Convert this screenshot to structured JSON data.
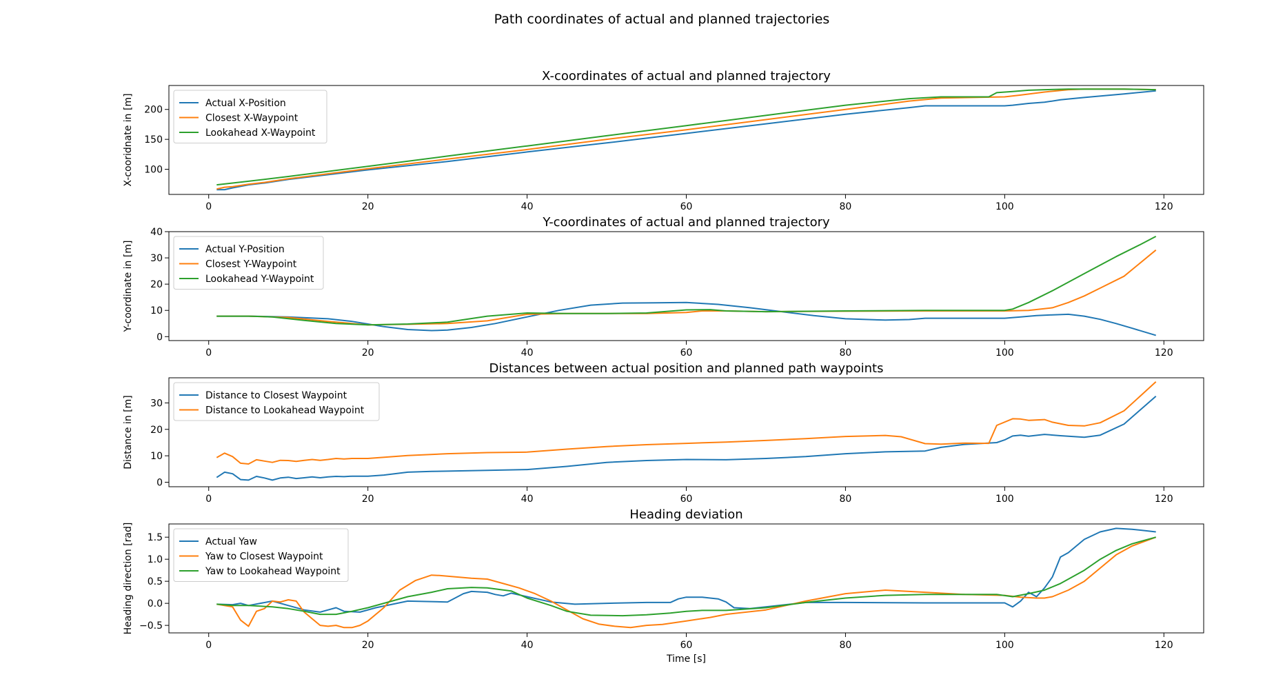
{
  "suptitle": "Path coordinates of actual and planned trajectories",
  "chart_data": [
    {
      "type": "line",
      "title": "X-coordinates of actual and planned trajectory",
      "xlabel": "",
      "ylabel": "X-cooridnate in [m]",
      "xlim": [
        -5,
        125
      ],
      "ylim": [
        58,
        240
      ],
      "xticks": [
        0,
        20,
        40,
        60,
        80,
        100,
        120
      ],
      "yticks": [
        100,
        150,
        200
      ],
      "legend_loc": "upper left",
      "series": [
        {
          "name": "Actual X-Position",
          "color": "#1f77b4",
          "x": [
            1,
            2,
            3,
            5,
            7,
            10,
            20,
            30,
            40,
            50,
            60,
            70,
            80,
            88,
            90,
            95,
            100,
            101,
            103,
            105,
            107,
            110,
            115,
            119
          ],
          "y": [
            66,
            66,
            69,
            74,
            77,
            83,
            99,
            113,
            129,
            144,
            160,
            176,
            192,
            203,
            206,
            206,
            206,
            207,
            210,
            212,
            216,
            220,
            226,
            231
          ]
        },
        {
          "name": "Closest X-Waypoint",
          "color": "#ff7f0e",
          "x": [
            1,
            2,
            3,
            5,
            7,
            10,
            20,
            30,
            40,
            50,
            60,
            70,
            80,
            88,
            92,
            100,
            102,
            105,
            108,
            110,
            115,
            119
          ],
          "y": [
            67,
            70,
            71,
            75,
            78,
            84,
            101,
            117,
            133,
            150,
            166,
            183,
            200,
            214,
            219,
            221,
            224,
            229,
            233,
            234,
            234,
            233
          ]
        },
        {
          "name": "Lookahead X-Waypoint",
          "color": "#2ca02c",
          "x": [
            1,
            5,
            10,
            20,
            30,
            40,
            50,
            60,
            70,
            80,
            88,
            92,
            98,
            99,
            101,
            103,
            105,
            108,
            110,
            115,
            119
          ],
          "y": [
            74,
            80,
            88,
            105,
            122,
            139,
            156,
            173,
            190,
            207,
            218,
            221,
            221,
            228,
            230,
            232,
            233,
            234,
            234,
            234,
            233
          ]
        }
      ]
    },
    {
      "type": "line",
      "title": "Y-coordinates of actual and planned trajectory",
      "xlabel": "",
      "ylabel": "Y-coordinate in [m]",
      "xlim": [
        -5,
        125
      ],
      "ylim": [
        -1.5,
        40
      ],
      "xticks": [
        0,
        20,
        40,
        60,
        80,
        100,
        120
      ],
      "yticks": [
        0,
        10,
        20,
        30,
        40
      ],
      "legend_loc": "upper left",
      "series": [
        {
          "name": "Actual Y-Position",
          "color": "#1f77b4",
          "x": [
            1,
            5,
            10,
            15,
            18,
            20,
            22,
            25,
            28,
            30,
            33,
            36,
            40,
            44,
            48,
            52,
            56,
            60,
            64,
            68,
            72,
            76,
            80,
            85,
            88,
            90,
            95,
            100,
            102,
            104,
            106,
            108,
            110,
            112,
            114,
            116,
            119
          ],
          "y": [
            7.8,
            7.8,
            7.5,
            6.8,
            5.8,
            4.8,
            3.8,
            2.7,
            2.3,
            2.5,
            3.5,
            5,
            7.5,
            10,
            12,
            12.8,
            12.9,
            13,
            12.3,
            11,
            9.5,
            8,
            6.8,
            6.3,
            6.5,
            7,
            7,
            7,
            7.5,
            8,
            8.3,
            8.5,
            7.8,
            6.6,
            5,
            3.2,
            0.5
          ]
        },
        {
          "name": "Closest Y-Waypoint",
          "color": "#ff7f0e",
          "x": [
            1,
            5,
            10,
            15,
            20,
            25,
            30,
            35,
            40,
            45,
            50,
            55,
            60,
            62,
            65,
            70,
            80,
            90,
            100,
            103,
            106,
            108,
            110,
            112,
            115,
            119
          ],
          "y": [
            7.8,
            7.8,
            7.3,
            5.8,
            4.5,
            4.7,
            5,
            6,
            8.5,
            8.8,
            8.8,
            8.8,
            9.2,
            9.8,
            9.8,
            9.5,
            9.7,
            9.8,
            9.8,
            10,
            11,
            13,
            15.5,
            18.5,
            23,
            33
          ]
        },
        {
          "name": "Lookahead Y-Waypoint",
          "color": "#2ca02c",
          "x": [
            1,
            5,
            8,
            12,
            16,
            20,
            25,
            30,
            35,
            40,
            45,
            50,
            55,
            60,
            63,
            65,
            70,
            80,
            90,
            100,
            101,
            103,
            106,
            110,
            114,
            117,
            119
          ],
          "y": [
            7.8,
            7.8,
            7.5,
            6.2,
            5,
            4.5,
            4.8,
            5.5,
            7.8,
            9,
            8.8,
            8.8,
            9,
            10.2,
            10.3,
            9.8,
            9.5,
            9.8,
            10,
            10,
            10.5,
            13,
            17.5,
            24,
            30.5,
            35,
            38.2
          ]
        }
      ]
    },
    {
      "type": "line",
      "title": "Distances between actual position and planned path waypoints",
      "xlabel": "",
      "ylabel": "Distance in [m]",
      "xlim": [
        -5,
        125
      ],
      "ylim": [
        -1.7,
        39.5
      ],
      "xticks": [
        0,
        20,
        40,
        60,
        80,
        100,
        120
      ],
      "yticks": [
        0,
        10,
        20,
        30
      ],
      "legend_loc": "upper left",
      "series": [
        {
          "name": "Distance to Closest Waypoint",
          "color": "#1f77b4",
          "x": [
            1,
            2,
            3,
            4,
            5,
            6,
            7,
            8,
            9,
            10,
            11,
            12,
            13,
            14,
            15,
            16,
            17,
            18,
            20,
            22,
            25,
            28,
            30,
            35,
            40,
            45,
            50,
            55,
            60,
            65,
            70,
            75,
            80,
            85,
            90,
            92,
            95,
            99,
            100,
            101,
            102,
            103,
            105,
            107,
            110,
            112,
            115,
            119
          ],
          "y": [
            1.8,
            3.8,
            3.2,
            1,
            0.8,
            2.2,
            1.6,
            0.8,
            1.6,
            1.9,
            1.4,
            1.7,
            2,
            1.7,
            2,
            2.2,
            2.1,
            2.3,
            2.3,
            2.7,
            3.8,
            4.1,
            4.2,
            4.5,
            4.8,
            6,
            7.5,
            8.2,
            8.6,
            8.5,
            9,
            9.7,
            10.8,
            11.5,
            11.8,
            13.2,
            14.3,
            15,
            16,
            17.5,
            17.8,
            17.4,
            18.1,
            17.6,
            17,
            17.8,
            22,
            32.5
          ]
        },
        {
          "name": "Distance to Lookahead Waypoint",
          "color": "#ff7f0e",
          "x": [
            1,
            2,
            3,
            4,
            5,
            6,
            7,
            8,
            9,
            10,
            11,
            12,
            13,
            14,
            15,
            16,
            17,
            18,
            20,
            25,
            30,
            35,
            40,
            45,
            50,
            55,
            60,
            65,
            70,
            75,
            80,
            85,
            87,
            90,
            92,
            95,
            98,
            99,
            101,
            102,
            103,
            105,
            106,
            108,
            110,
            112,
            115,
            119
          ],
          "y": [
            9.3,
            11,
            9.7,
            7.2,
            6.9,
            8.5,
            8,
            7.5,
            8.3,
            8.2,
            7.9,
            8.3,
            8.6,
            8.3,
            8.6,
            9,
            8.8,
            9,
            9,
            10.1,
            10.8,
            11.2,
            11.4,
            12.5,
            13.5,
            14.2,
            14.7,
            15.2,
            15.8,
            16.5,
            17.3,
            17.7,
            17.2,
            14.6,
            14.4,
            14.8,
            14.7,
            21.5,
            24,
            23.9,
            23.4,
            23.7,
            22.7,
            21.5,
            21.3,
            22.5,
            27,
            38
          ]
        }
      ]
    },
    {
      "type": "line",
      "title": "Heading deviation",
      "xlabel": "Time [s]",
      "ylabel": "Heading direction [rad]",
      "xlim": [
        -5,
        125
      ],
      "ylim": [
        -0.67,
        1.8
      ],
      "xticks": [
        0,
        20,
        40,
        60,
        80,
        100,
        120
      ],
      "yticks": [
        -0.5,
        0.0,
        0.5,
        1.0,
        1.5
      ],
      "legend_loc": "upper left",
      "series": [
        {
          "name": "Actual Yaw",
          "color": "#1f77b4",
          "x": [
            1,
            3,
            4,
            5,
            8,
            10,
            12,
            14,
            15,
            16,
            17,
            19,
            21,
            25,
            30,
            32,
            33,
            35,
            36,
            37,
            38,
            40,
            43,
            46,
            50,
            55,
            58,
            59,
            60,
            62,
            64,
            65,
            66,
            68,
            70,
            75,
            80,
            90,
            100,
            101,
            102,
            103,
            104,
            105,
            106,
            107,
            108,
            110,
            112,
            114,
            116,
            119
          ],
          "y": [
            -0.02,
            -0.03,
            0,
            -0.05,
            0.05,
            -0.05,
            -0.15,
            -0.2,
            -0.15,
            -0.1,
            -0.18,
            -0.2,
            -0.1,
            0.05,
            0.03,
            0.22,
            0.27,
            0.25,
            0.2,
            0.17,
            0.23,
            0.15,
            0.03,
            -0.02,
            0,
            0.02,
            0.02,
            0.1,
            0.14,
            0.14,
            0.1,
            0.03,
            -0.1,
            -0.12,
            -0.08,
            0.02,
            0.02,
            0.01,
            0.01,
            -0.08,
            0.05,
            0.25,
            0.15,
            0.35,
            0.6,
            1.05,
            1.15,
            1.45,
            1.62,
            1.7,
            1.68,
            1.62
          ]
        },
        {
          "name": "Yaw to Closest Waypoint",
          "color": "#ff7f0e",
          "x": [
            1,
            3,
            4,
            5,
            6,
            7,
            8,
            9,
            10,
            11,
            12,
            13,
            14,
            15,
            16,
            17,
            18,
            19,
            20,
            22,
            24,
            26,
            28,
            29,
            31,
            33,
            35,
            37,
            39,
            41,
            43,
            45,
            47,
            49,
            51,
            53,
            55,
            57,
            60,
            63,
            65,
            70,
            75,
            80,
            85,
            90,
            95,
            100,
            102,
            104,
            105,
            106,
            108,
            110,
            112,
            114,
            116,
            119
          ],
          "y": [
            -0.02,
            -0.08,
            -0.38,
            -0.52,
            -0.18,
            -0.12,
            0.05,
            0.03,
            0.08,
            0.05,
            -0.2,
            -0.35,
            -0.5,
            -0.52,
            -0.5,
            -0.55,
            -0.55,
            -0.5,
            -0.4,
            -0.1,
            0.3,
            0.52,
            0.64,
            0.63,
            0.6,
            0.57,
            0.55,
            0.45,
            0.35,
            0.22,
            0.05,
            -0.15,
            -0.35,
            -0.47,
            -0.52,
            -0.55,
            -0.5,
            -0.48,
            -0.4,
            -0.32,
            -0.25,
            -0.15,
            0.05,
            0.22,
            0.3,
            0.25,
            0.2,
            0.18,
            0.14,
            0.12,
            0.12,
            0.15,
            0.3,
            0.5,
            0.8,
            1.1,
            1.3,
            1.5
          ]
        },
        {
          "name": "Yaw to Lookahead Waypoint",
          "color": "#2ca02c",
          "x": [
            1,
            3,
            5,
            8,
            10,
            12,
            14,
            16,
            18,
            20,
            22,
            25,
            28,
            30,
            33,
            35,
            38,
            40,
            43,
            45,
            48,
            52,
            55,
            58,
            60,
            62,
            65,
            70,
            75,
            80,
            85,
            90,
            95,
            99,
            101,
            103,
            105,
            107,
            110,
            112,
            114,
            116,
            119
          ],
          "y": [
            -0.02,
            -0.05,
            -0.05,
            -0.08,
            -0.12,
            -0.18,
            -0.25,
            -0.25,
            -0.18,
            -0.1,
            0,
            0.15,
            0.25,
            0.33,
            0.36,
            0.35,
            0.28,
            0.12,
            -0.05,
            -0.18,
            -0.27,
            -0.28,
            -0.26,
            -0.22,
            -0.18,
            -0.16,
            -0.16,
            -0.1,
            0.02,
            0.12,
            0.18,
            0.2,
            0.2,
            0.2,
            0.15,
            0.22,
            0.3,
            0.45,
            0.75,
            1.0,
            1.2,
            1.35,
            1.5
          ]
        }
      ]
    }
  ]
}
